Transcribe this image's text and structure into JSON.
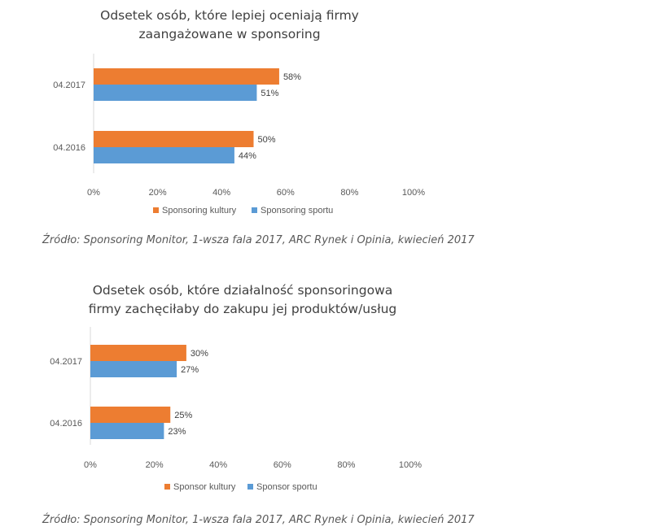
{
  "chart_data": [
    {
      "type": "bar",
      "orientation": "horizontal",
      "title_lines": [
        "Odsetek osób, które lepiej oceniają firmy",
        "zaangażowane w sponsoring"
      ],
      "categories": [
        "04.2017",
        "04.2016"
      ],
      "series": [
        {
          "name": "Sponsoring kultury",
          "color": "#ED7D31",
          "values": [
            58,
            50
          ],
          "labels": [
            "58%",
            "50%"
          ]
        },
        {
          "name": "Sponsoring sportu",
          "color": "#5B9BD5",
          "values": [
            51,
            44
          ],
          "labels": [
            "51%",
            "44%"
          ]
        }
      ],
      "xlim": [
        0,
        100
      ],
      "xticks": [
        0,
        20,
        40,
        60,
        80,
        100
      ],
      "xtick_labels": [
        "0%",
        "20%",
        "40%",
        "60%",
        "80%",
        "100%"
      ],
      "grid": false,
      "legend_position": "bottom",
      "source": "Źródło: Sponsoring Monitor, 1-wsza fala 2017, ARC Rynek i Opinia, kwiecień 2017"
    },
    {
      "type": "bar",
      "orientation": "horizontal",
      "title_lines": [
        "Odsetek osób, które działalność sponsoringowa",
        "firmy zachęciłaby do zakupu jej produktów/usług"
      ],
      "categories": [
        "04.2017",
        "04.2016"
      ],
      "series": [
        {
          "name": "Sponsor kultury",
          "color": "#ED7D31",
          "values": [
            30,
            25
          ],
          "labels": [
            "30%",
            "25%"
          ]
        },
        {
          "name": "Sponsor sportu",
          "color": "#5B9BD5",
          "values": [
            27,
            23
          ],
          "labels": [
            "27%",
            "23%"
          ]
        }
      ],
      "xlim": [
        0,
        100
      ],
      "xticks": [
        0,
        20,
        40,
        60,
        80,
        100
      ],
      "xtick_labels": [
        "0%",
        "20%",
        "40%",
        "60%",
        "80%",
        "100%"
      ],
      "grid": false,
      "legend_position": "bottom",
      "source": "Źródło: Sponsoring Monitor, 1-wsza fala 2017, ARC Rynek i Opinia, kwiecień 2017"
    }
  ]
}
